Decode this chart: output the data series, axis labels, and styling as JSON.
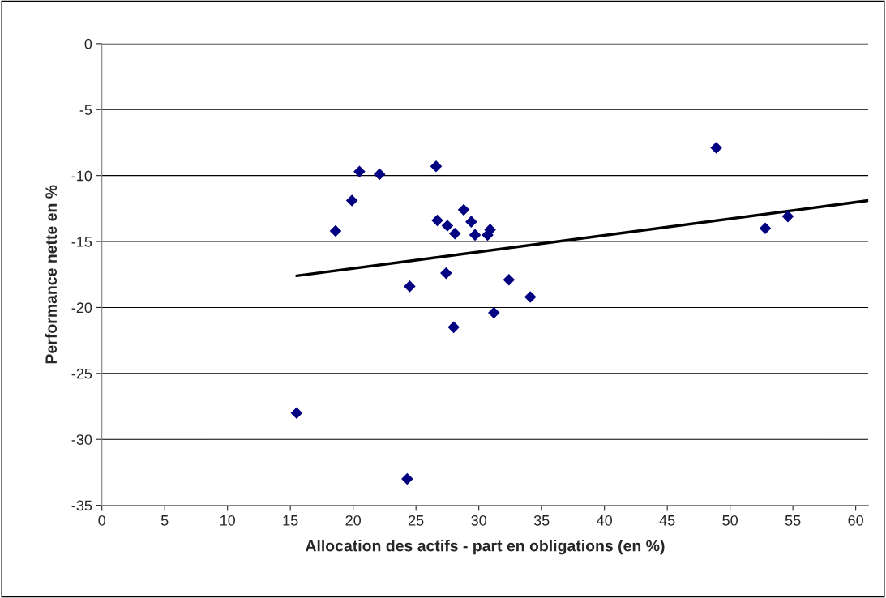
{
  "chart_data": {
    "type": "scatter",
    "xlabel": "Allocation des actifs - part en obligations (en %)",
    "ylabel": "Performance nette en %",
    "xlim": [
      0,
      61
    ],
    "xticks": [
      0,
      5,
      10,
      15,
      20,
      25,
      30,
      35,
      40,
      45,
      50,
      55,
      60
    ],
    "ylim": [
      -35,
      0
    ],
    "yticks": [
      -35,
      -30,
      -25,
      -20,
      -15,
      -10,
      -5,
      0
    ],
    "grid": "y",
    "legend": false,
    "series": [
      {
        "color": "#000080",
        "marker": "diamond",
        "x": [
          15.5,
          18.6,
          19.9,
          20.5,
          22.1,
          24.3,
          24.5,
          26.6,
          26.7,
          27.4,
          27.5,
          28.0,
          28.1,
          28.8,
          29.4,
          29.7,
          30.7,
          30.9,
          31.2,
          32.4,
          34.1,
          48.9,
          52.8,
          54.6
        ],
        "values": [
          -28.0,
          -14.2,
          -11.9,
          -9.7,
          -9.9,
          -33.0,
          -18.4,
          -9.3,
          -13.4,
          -17.4,
          -13.8,
          -21.5,
          -14.4,
          -12.6,
          -13.5,
          -14.5,
          -14.5,
          -14.1,
          -20.4,
          -17.9,
          -19.2,
          -7.9,
          -14.0,
          -13.1
        ]
      },
      {
        "type": "line",
        "color": "#000000",
        "marker": "none",
        "line_style": "solid",
        "x": [
          15.5,
          61
        ],
        "values": [
          -17.6,
          -11.9
        ]
      }
    ]
  }
}
